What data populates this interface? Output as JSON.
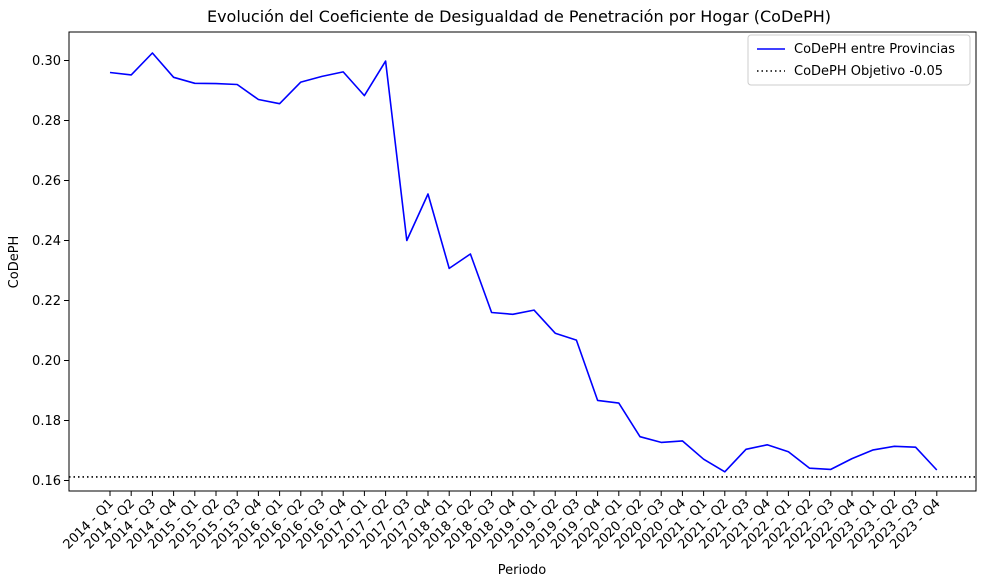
{
  "chart_data": {
    "type": "line",
    "title": "Evolución del Coeficiente de Desigualdad de Penetración por Hogar (CoDePH)",
    "xlabel": "Periodo",
    "ylabel": "CoDePH",
    "ylim": [
      0.1565,
      0.3095
    ],
    "yticks": [
      "0.16",
      "0.18",
      "0.20",
      "0.22",
      "0.24",
      "0.26",
      "0.28",
      "0.30"
    ],
    "ytick_values": [
      0.16,
      0.18,
      0.2,
      0.22,
      0.24,
      0.26,
      0.28,
      0.3
    ],
    "grid": false,
    "legend_position": "top-right",
    "categories": [
      "2014 - Q1",
      "2014 - Q2",
      "2014 - Q3",
      "2014 - Q4",
      "2015 - Q1",
      "2015 - Q2",
      "2015 - Q3",
      "2015 - Q4",
      "2016 - Q1",
      "2016 - Q2",
      "2016 - Q3",
      "2016 - Q4",
      "2017 - Q1",
      "2017 - Q2",
      "2017 - Q3",
      "2017 - Q4",
      "2018 - Q1",
      "2018 - Q2",
      "2018 - Q3",
      "2018 - Q4",
      "2019 - Q1",
      "2019 - Q2",
      "2019 - Q3",
      "2019 - Q4",
      "2020 - Q1",
      "2020 - Q2",
      "2020 - Q3",
      "2020 - Q4",
      "2021 - Q1",
      "2021 - Q2",
      "2021 - Q3",
      "2021 - Q4",
      "2022 - Q1",
      "2022 - Q2",
      "2022 - Q3",
      "2022 - Q4",
      "2023 - Q1",
      "2023 - Q2",
      "2023 - Q3",
      "2023 - Q4"
    ],
    "series": [
      {
        "name": "CoDePH entre Provincias",
        "color": "#0000ff",
        "style": "solid",
        "values": [
          0.296,
          0.2952,
          0.3025,
          0.2944,
          0.2924,
          0.2923,
          0.292,
          0.287,
          0.2856,
          0.2928,
          0.2947,
          0.2962,
          0.2883,
          0.2998,
          0.24,
          0.2555,
          0.2307,
          0.2355,
          0.216,
          0.2154,
          0.2168,
          0.2091,
          0.2068,
          0.1867,
          0.1858,
          0.1746,
          0.1727,
          0.1732,
          0.1671,
          0.1629,
          0.1704,
          0.1719,
          0.1696,
          0.1641,
          0.1637,
          0.1673,
          0.1702,
          0.1714,
          0.1711,
          0.1635
        ]
      }
    ],
    "reference_lines": [
      {
        "name": "CoDePH Objetivo -0.05",
        "color": "#000000",
        "style": "dotted",
        "value": 0.1612
      }
    ]
  }
}
